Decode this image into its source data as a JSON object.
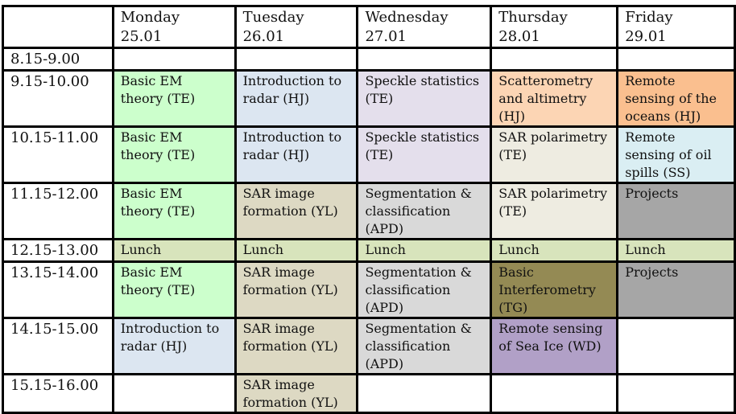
{
  "schedule": {
    "days": [
      {
        "line1": "Monday",
        "line2": "25.01"
      },
      {
        "line1": "Tuesday 26.01",
        "line2": ""
      },
      {
        "line1": "Wednesday",
        "line2": "27.01"
      },
      {
        "line1": "Thursday",
        "line2": "28.01"
      },
      {
        "line1": "Friday",
        "line2": "29.01"
      }
    ],
    "times": [
      "8.15-9.00",
      "9.15-10.00",
      "10.15-11.00",
      "11.15-12.00",
      "12.15-13.00",
      "13.15-14.00",
      "14.15-15.00",
      "15.15-16.00"
    ],
    "rows": [
      [
        "",
        "",
        "",
        "",
        ""
      ],
      [
        "Basic EM\ntheory (TE)",
        "Introduction to\nradar (HJ)",
        "Speckle statistics\n(TE)",
        "Scatterometry\nand altimetry\n(HJ)",
        "Remote\nsensing of the\noceans (HJ)"
      ],
      [
        "Basic EM\ntheory (TE)",
        "Introduction to\nradar (HJ)",
        "Speckle statistics\n(TE)",
        "SAR polarimetry\n(TE)",
        "Remote\nsensing of oil\nspills (SS)"
      ],
      [
        "Basic EM\ntheory (TE)",
        "SAR image\nformation (YL)",
        "Segmentation &\nclassification\n(APD)",
        "SAR polarimetry\n(TE)",
        "Projects"
      ],
      [
        "Lunch",
        "Lunch",
        "Lunch",
        "Lunch",
        "Lunch"
      ],
      [
        "Basic EM\ntheory (TE)",
        "SAR image\nformation (YL)",
        "Segmentation &\nclassification\n(APD)",
        "Basic\nInterferometry\n(TG)",
        "Projects"
      ],
      [
        "Introduction to\nradar (HJ)",
        "SAR image\nformation (YL)",
        "Segmentation &\nclassification\n(APD)",
        "Remote sensing\nof Sea Ice  (WD)",
        ""
      ],
      [
        "",
        "SAR image\nformation (YL)",
        "",
        "",
        ""
      ]
    ]
  }
}
